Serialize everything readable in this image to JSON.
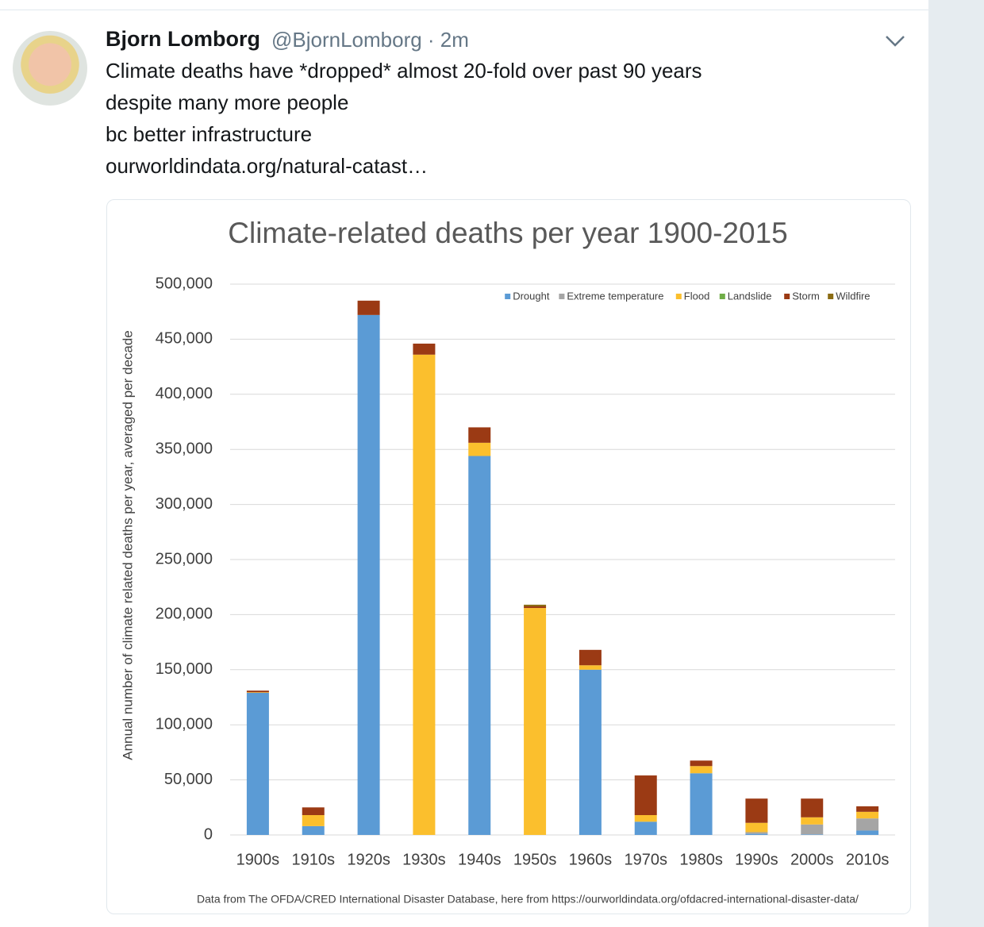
{
  "tweet": {
    "author_name": "Bjorn Lomborg",
    "meta": "@BjornLomborg · 2m",
    "text_lines": [
      "Climate deaths have *dropped* almost 20-fold over past 90 years",
      "despite many more people",
      "bc better infrastructure",
      "ourworldindata.org/natural-catast…"
    ]
  },
  "chart_data": {
    "type": "stacked_bar",
    "title": "Climate-related deaths per year 1900-2015",
    "y_label": "Annual number of climate related deaths per year, averaged per decade",
    "source": "Data from The OFDA/CRED International Disaster Database, here from https://ourworldindata.org/ofdacred-international-disaster-data/",
    "categories": [
      "1900s",
      "1910s",
      "1920s",
      "1930s",
      "1940s",
      "1950s",
      "1960s",
      "1970s",
      "1980s",
      "1990s",
      "2000s",
      "2010s"
    ],
    "series": [
      {
        "name": "Drought",
        "color": "#5b9bd5",
        "values": [
          129000,
          8000,
          472000,
          0,
          344000,
          0,
          150000,
          12000,
          56000,
          1000,
          500,
          4000
        ]
      },
      {
        "name": "Extreme temperature",
        "color": "#a5a5a5",
        "values": [
          0,
          0,
          0,
          0,
          0,
          0,
          0,
          0,
          0,
          1500,
          9000,
          11000
        ]
      },
      {
        "name": "Flood",
        "color": "#fbbf2d",
        "values": [
          500,
          10000,
          0,
          436000,
          12000,
          206000,
          4000,
          6000,
          6500,
          8500,
          6500,
          6000
        ]
      },
      {
        "name": "Landslide",
        "color": "#70ad47",
        "values": [
          0,
          0,
          0,
          0,
          0,
          0,
          0,
          0,
          0,
          0,
          0,
          0
        ]
      },
      {
        "name": "Storm",
        "color": "#9b3a14",
        "values": [
          1500,
          7000,
          13000,
          10000,
          14000,
          1500,
          14000,
          36000,
          5000,
          22000,
          17000,
          5000
        ]
      },
      {
        "name": "Wildfire",
        "color": "#8b6c14",
        "values": [
          0,
          0,
          0,
          0,
          0,
          1500,
          0,
          0,
          0,
          0,
          0,
          0
        ]
      }
    ],
    "ylim": [
      0,
      500000
    ],
    "yticks": [
      0,
      {
        "value": 50000,
        "label": "50,000"
      },
      {
        "value": 100000,
        "label": "100,000"
      },
      {
        "value": 150000,
        "label": "150,000"
      },
      {
        "value": 200000,
        "label": "200,000"
      },
      {
        "value": 250000,
        "label": "250,000"
      },
      {
        "value": 300000,
        "label": "300,000"
      },
      {
        "value": 350000,
        "label": "350,000"
      },
      {
        "value": 400000,
        "label": "400,000"
      },
      {
        "value": 450000,
        "label": "450,000"
      },
      {
        "value": 500000,
        "label": "500,000"
      }
    ],
    "grid": true,
    "legend": "top-right"
  }
}
